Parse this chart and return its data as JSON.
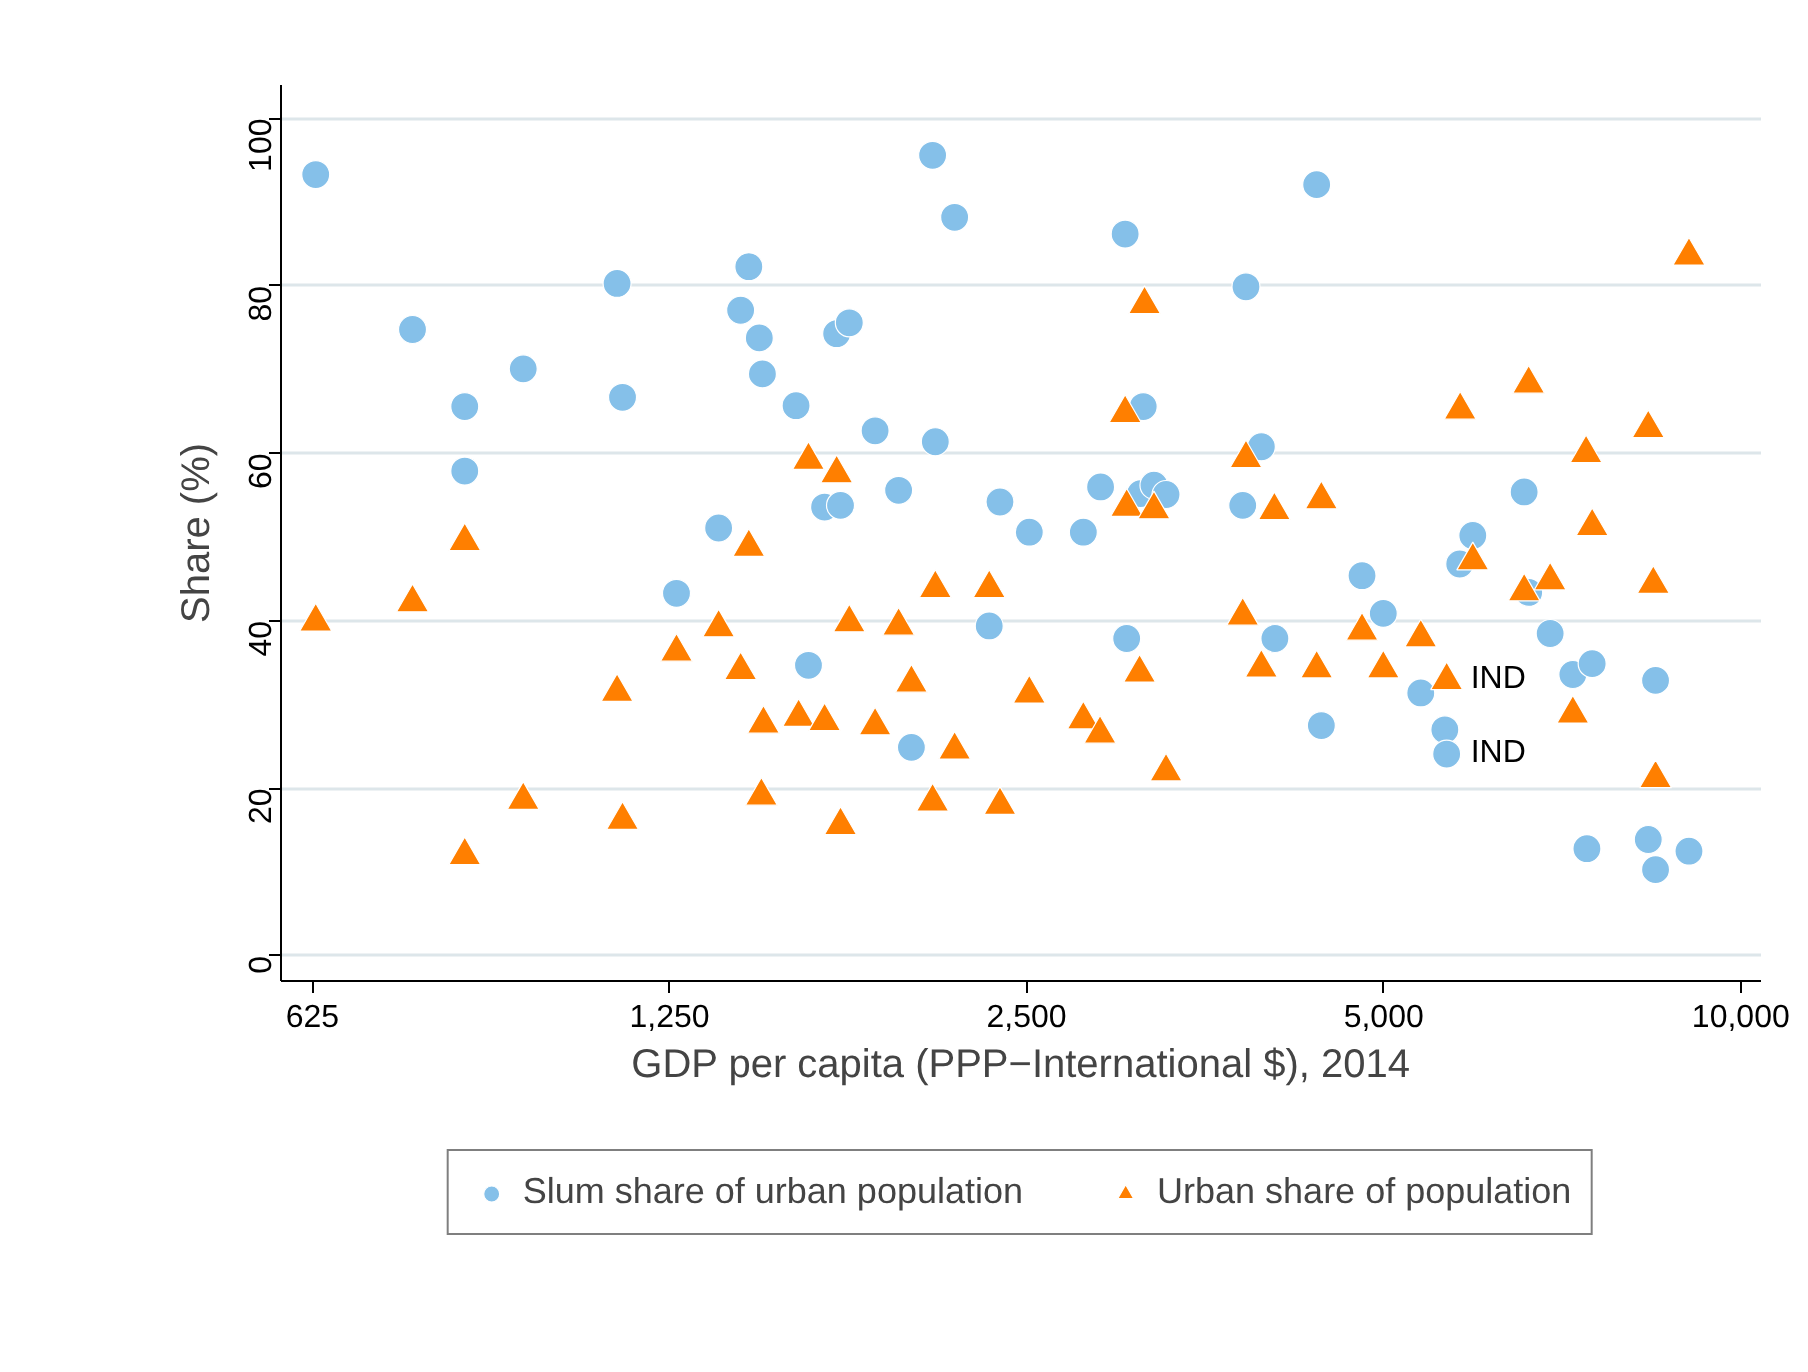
{
  "chart_data": {
    "type": "scatter",
    "xlabel": "GDP per capita (PPP−International $), 2014",
    "ylabel": "Share (%)",
    "log": "x",
    "grid": "y",
    "legend": "bottom",
    "xlim": [
      588,
      10400
    ],
    "ylim": [
      -3,
      104
    ],
    "xticks": [
      625,
      {
        "value": 1250,
        "label": "1,250"
      },
      {
        "value": 2500,
        "label": "2,500"
      },
      {
        "value": 5000,
        "label": "5,000"
      },
      {
        "value": 10000,
        "label": "10,000"
      }
    ],
    "yticks": [
      0,
      20,
      40,
      60,
      80,
      100
    ],
    "annotations": [
      {
        "text": "IND",
        "x": 5650,
        "y": 32.9
      },
      {
        "text": "IND",
        "x": 5650,
        "y": 24.1
      }
    ],
    "series": [
      {
        "name": "Slum share of urban population",
        "color": "#85c0e9",
        "marker": "circle",
        "x": [
          629,
          759,
          840,
          840,
          941,
          1129,
          1141,
          1267,
          1375,
          1435,
          1458,
          1488,
          1497,
          1598,
          1637,
          1689,
          1729,
          1742,
          1772,
          1863,
          1950,
          1999,
          2083,
          2094,
          2174,
          2325,
          2374,
          2513,
          2791,
          2886,
          3027,
          3036,
          3119,
          3135,
          3201,
          3277,
          3803,
          3827,
          3943,
          4048,
          4390,
          4430,
          4794,
          4996,
          5373,
          5630,
          5650,
          5795,
          5944,
          6567,
          6625,
          6907,
          7218,
          7418,
          7494,
          8356,
          8475,
          8475,
          9043
        ],
        "values": [
          93.3,
          74.8,
          65.6,
          57.9,
          70.1,
          80.3,
          66.7,
          43.3,
          51.1,
          77.1,
          82.3,
          73.8,
          69.5,
          65.7,
          34.7,
          53.6,
          74.3,
          53.8,
          75.6,
          62.7,
          55.6,
          24.9,
          95.6,
          61.4,
          88.2,
          39.4,
          54.2,
          50.6,
          50.6,
          56.0,
          86.2,
          37.9,
          55.2,
          65.6,
          56.2,
          55.1,
          53.8,
          79.9,
          60.8,
          37.9,
          92.1,
          27.5,
          45.4,
          40.9,
          31.4,
          27.0,
          24.1,
          46.8,
          50.2,
          55.4,
          43.4,
          38.5,
          33.6,
          12.8,
          34.9,
          13.9,
          32.9,
          10.3,
          12.5
        ]
      },
      {
        "name": "Urban share of population",
        "color": "#ff7f00",
        "marker": "triangle",
        "x": [
          629,
          759,
          840,
          840,
          941,
          1129,
          1141,
          1267,
          1375,
          1435,
          1458,
          1494,
          1500,
          1606,
          1637,
          1689,
          1729,
          1742,
          1772,
          1863,
          1950,
          1999,
          2083,
          2094,
          2174,
          2325,
          2374,
          2513,
          2791,
          2883,
          3027,
          3036,
          3113,
          3143,
          3201,
          3277,
          3803,
          3827,
          3943,
          4044,
          4390,
          4430,
          4794,
          4996,
          5373,
          5650,
          5800,
          5944,
          6567,
          6625,
          6907,
          7218,
          7406,
          7494,
          8356,
          8438,
          8475,
          9043
        ],
        "values": [
          39.9,
          42.2,
          49.5,
          12.0,
          18.6,
          31.5,
          16.2,
          36.3,
          39.2,
          34.1,
          48.8,
          19.1,
          27.7,
          28.5,
          59.2,
          28.0,
          57.6,
          15.6,
          39.8,
          27.5,
          39.4,
          32.6,
          18.4,
          43.9,
          24.6,
          43.9,
          18.0,
          31.3,
          28.2,
          26.5,
          64.8,
          53.6,
          33.8,
          77.8,
          53.3,
          22.0,
          40.6,
          59.4,
          34.4,
          53.2,
          34.3,
          54.5,
          38.8,
          34.3,
          38.0,
          32.9,
          65.2,
          47.2,
          43.5,
          68.3,
          44.8,
          28.9,
          60.0,
          51.3,
          63.0,
          44.4,
          21.2,
          83.6
        ]
      }
    ]
  }
}
